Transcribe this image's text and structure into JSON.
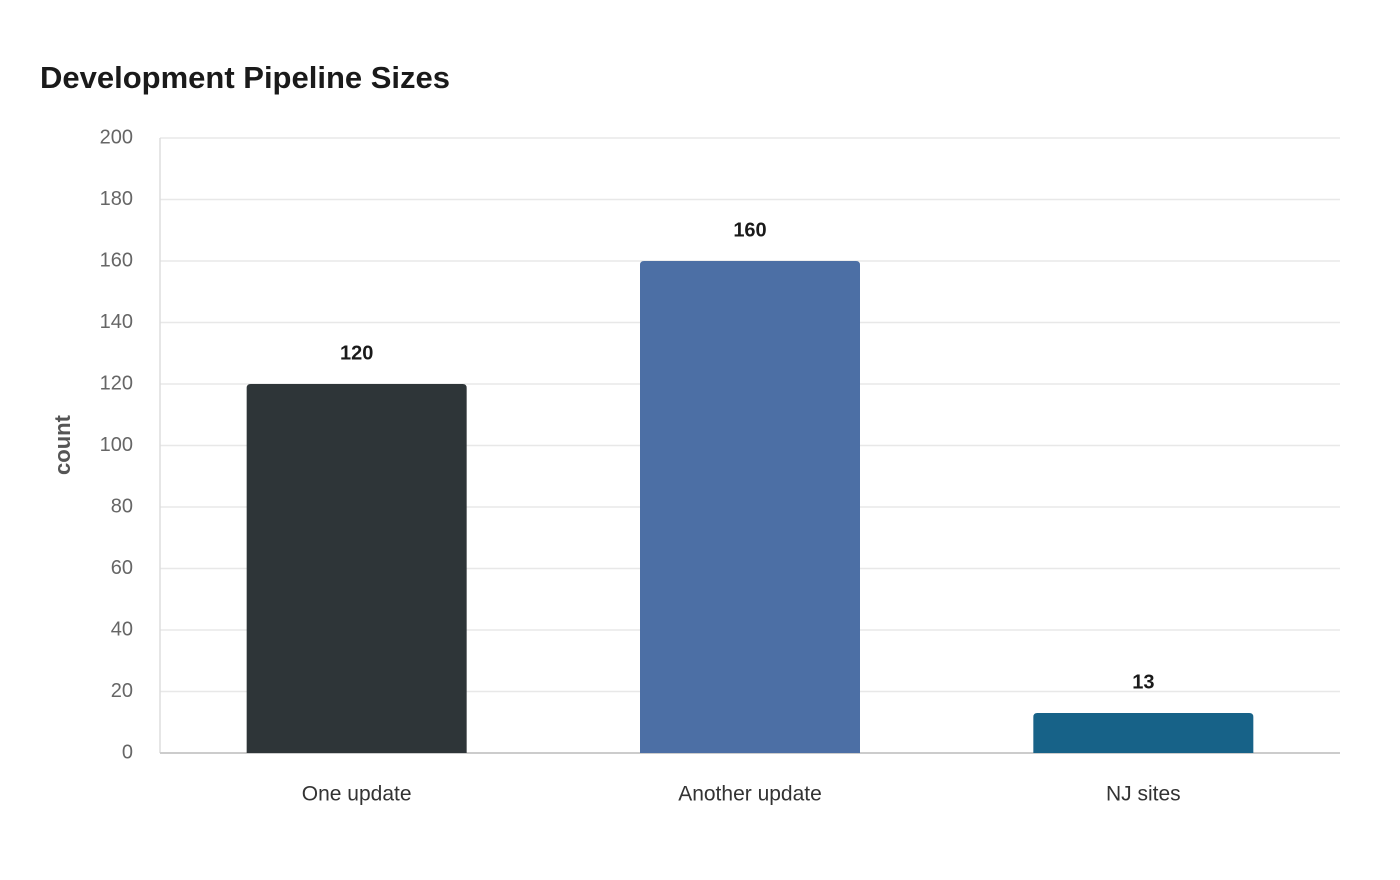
{
  "chart_data": {
    "type": "bar",
    "title": "Development Pipeline Sizes",
    "y_label": "count",
    "categories": [
      "One update",
      "Another update",
      "NJ sites"
    ],
    "values": [
      120,
      160,
      13
    ],
    "colors": [
      "#2e3538",
      "#4c6fa5",
      "#176288"
    ],
    "ylim": [
      0,
      200
    ],
    "yticks": [
      0,
      20,
      40,
      60,
      80,
      100,
      120,
      140,
      160,
      180,
      200
    ],
    "grid": true
  }
}
